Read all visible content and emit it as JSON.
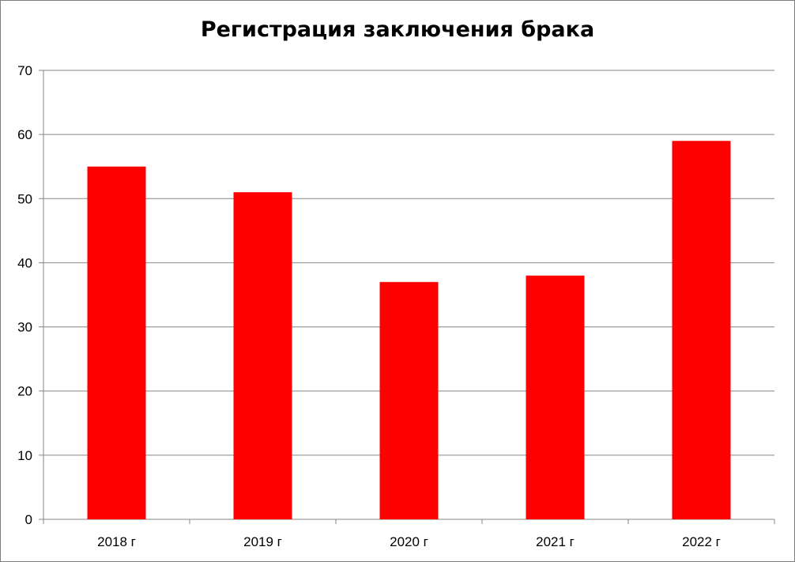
{
  "chart_data": {
    "type": "bar",
    "title": "Регистрация заключения брака",
    "xlabel": "",
    "ylabel": "",
    "categories": [
      "2018 г",
      "2019 г",
      "2020 г",
      "2021 г",
      "2022 г"
    ],
    "values": [
      55,
      51,
      37,
      38,
      59
    ],
    "ylim": [
      0,
      70
    ],
    "yticks": [
      "0",
      "10",
      "20",
      "30",
      "40",
      "50",
      "60",
      "70"
    ],
    "grid": true,
    "legend": "none",
    "bar_color": "#ff0000"
  }
}
